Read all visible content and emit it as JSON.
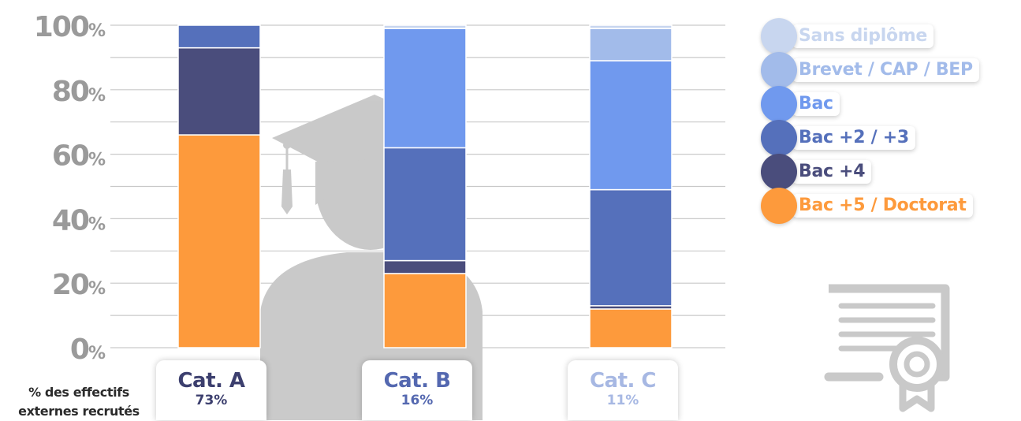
{
  "chart_data": {
    "type": "bar",
    "stacked": true,
    "y_unit": "%",
    "ylim": [
      0,
      100
    ],
    "yticks": [
      {
        "value": 0,
        "num": "0",
        "unit": "%"
      },
      {
        "value": 20,
        "num": "20",
        "unit": "%"
      },
      {
        "value": 40,
        "num": "40",
        "unit": "%"
      },
      {
        "value": 60,
        "num": "60",
        "unit": "%"
      },
      {
        "value": 80,
        "num": "80",
        "unit": "%"
      },
      {
        "value": 100,
        "num": "100",
        "unit": "%"
      }
    ],
    "grid": true,
    "legend_position": "right",
    "categories": [
      {
        "name": "Cat. A",
        "share": "73%"
      },
      {
        "name": "Cat. B",
        "share": "16%"
      },
      {
        "name": "Cat. C",
        "share": "11%"
      }
    ],
    "series": [
      {
        "name": "Bac +5 / Doctorat",
        "color": "#fd9a3c",
        "values": [
          66,
          23,
          12
        ]
      },
      {
        "name": "Bac +4",
        "color": "#4a4d7c",
        "values": [
          27,
          4,
          1
        ]
      },
      {
        "name": "Bac +2 / +3",
        "color": "#5570bb",
        "values": [
          7,
          35,
          36
        ]
      },
      {
        "name": "Bac",
        "color": "#7099ee",
        "values": [
          0,
          37,
          40
        ]
      },
      {
        "name": "Brevet / CAP / BEP",
        "color": "#a2bbea",
        "values": [
          0,
          0,
          10
        ]
      },
      {
        "name": "Sans diplôme",
        "color": "#c8d6ef",
        "values": [
          0,
          1,
          1
        ]
      }
    ],
    "category_label_colors": [
      "#3c3f6e",
      "#5468b0",
      "#a7b8e3"
    ]
  },
  "footer": {
    "line1": "% des effectifs",
    "line2": "externes recrutés"
  },
  "icons": [
    "graduate-silhouette-icon",
    "diploma-certificate-icon"
  ]
}
